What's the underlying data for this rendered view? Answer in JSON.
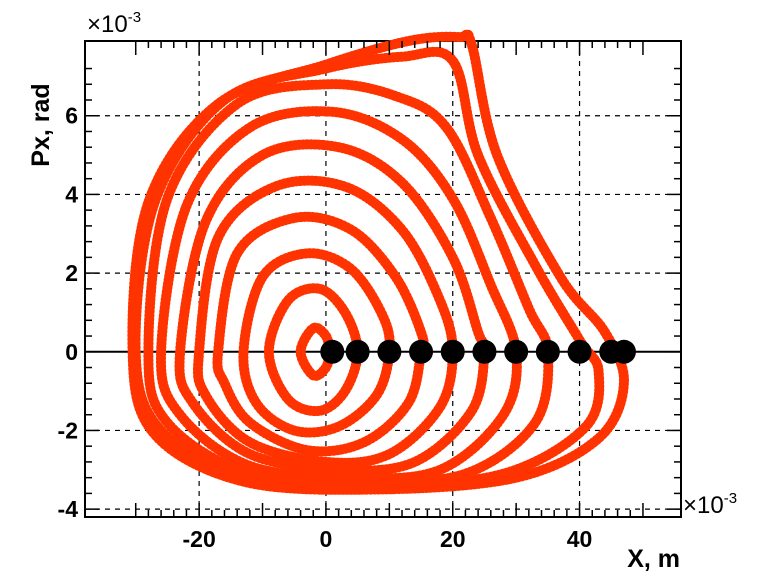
{
  "chart_data": {
    "type": "scatter",
    "title": "",
    "xlabel": "X, m",
    "ylabel": "Px, rad",
    "x_multiplier_label": "×10",
    "x_multiplier_exp": "-3",
    "y_multiplier_label": "×10",
    "y_multiplier_exp": "-3",
    "xlim": [
      -38,
      56
    ],
    "ylim": [
      -4.2,
      7.9
    ],
    "grid": true,
    "grid_style": "dashed",
    "xticks": [
      -20,
      0,
      20,
      40
    ],
    "yticks": [
      -4,
      -2,
      0,
      2,
      4,
      6
    ],
    "xtick_labels": [
      "-20",
      "0",
      "20",
      "40"
    ],
    "ytick_labels": [
      "-4",
      "-2",
      "0",
      "2",
      "4",
      "6"
    ],
    "series": [
      {
        "kind": "phase-space orbits",
        "color": "#ff3300",
        "orbits": [
          [
            [
              -4,
              0
            ],
            [
              -2,
              0.6
            ],
            [
              0,
              0.4
            ],
            [
              0.5,
              0
            ],
            [
              0,
              -0.4
            ],
            [
              -2,
              -0.6
            ]
          ],
          [
            [
              -9,
              0
            ],
            [
              -6,
              1.3
            ],
            [
              -1,
              1.6
            ],
            [
              3,
              1.0
            ],
            [
              5,
              0
            ],
            [
              3,
              -1.0
            ],
            [
              -1,
              -1.5
            ],
            [
              -6,
              -1.2
            ]
          ],
          [
            [
              -13,
              0
            ],
            [
              -10,
              1.9
            ],
            [
              -3,
              2.5
            ],
            [
              4,
              2.1
            ],
            [
              9,
              0.9
            ],
            [
              10,
              0
            ],
            [
              8,
              -1.1
            ],
            [
              2,
              -1.9
            ],
            [
              -5,
              -2.0
            ],
            [
              -11,
              -1.3
            ]
          ],
          [
            [
              -17,
              0
            ],
            [
              -14,
              2.5
            ],
            [
              -5,
              3.4
            ],
            [
              4,
              3.1
            ],
            [
              11,
              1.9
            ],
            [
              15,
              0.5
            ],
            [
              15,
              0
            ],
            [
              13,
              -1.3
            ],
            [
              6,
              -2.3
            ],
            [
              -3,
              -2.5
            ],
            [
              -12,
              -1.8
            ],
            [
              -16,
              -0.8
            ]
          ],
          [
            [
              -20,
              0
            ],
            [
              -17,
              2.9
            ],
            [
              -8,
              4.2
            ],
            [
              3,
              4.2
            ],
            [
              12,
              3.1
            ],
            [
              18,
              1.3
            ],
            [
              20,
              0
            ],
            [
              18,
              -1.4
            ],
            [
              10,
              -2.6
            ],
            [
              0,
              -2.8
            ],
            [
              -12,
              -2.3
            ],
            [
              -19,
              -1.1
            ]
          ],
          [
            [
              -23,
              0
            ],
            [
              -19,
              3.3
            ],
            [
              -10,
              5.0
            ],
            [
              2,
              5.2
            ],
            [
              12,
              4.3
            ],
            [
              20,
              2.4
            ],
            [
              24,
              0.5
            ],
            [
              25,
              0
            ],
            [
              23,
              -1.5
            ],
            [
              14,
              -2.8
            ],
            [
              2,
              -3.0
            ],
            [
              -12,
              -2.6
            ],
            [
              -21,
              -1.3
            ]
          ],
          [
            [
              -26,
              0
            ],
            [
              -22,
              3.7
            ],
            [
              -12,
              5.7
            ],
            [
              1,
              6.1
            ],
            [
              12,
              5.4
            ],
            [
              20,
              3.9
            ],
            [
              26,
              1.7
            ],
            [
              30,
              0
            ],
            [
              28,
              -1.6
            ],
            [
              18,
              -3.0
            ],
            [
              4,
              -3.2
            ],
            [
              -12,
              -2.9
            ],
            [
              -23,
              -1.6
            ]
          ],
          [
            [
              -28,
              0
            ],
            [
              -25,
              3.9
            ],
            [
              -14,
              6.3
            ],
            [
              0,
              6.8
            ],
            [
              11,
              6.5
            ],
            [
              19,
              5.7
            ],
            [
              26,
              3.4
            ],
            [
              32,
              1.1
            ],
            [
              35,
              0
            ],
            [
              33,
              -1.8
            ],
            [
              22,
              -3.1
            ],
            [
              6,
              -3.3
            ],
            [
              -12,
              -3.1
            ],
            [
              -25,
              -1.8
            ]
          ],
          [
            [
              -30,
              0
            ],
            [
              -27,
              3.8
            ],
            [
              -16,
              6.4
            ],
            [
              0,
              7.2
            ],
            [
              12,
              7.5
            ],
            [
              20,
              7.4
            ],
            [
              24,
              5.0
            ],
            [
              33,
              2.2
            ],
            [
              40,
              0.3
            ],
            [
              43,
              -0.5
            ],
            [
              41,
              -1.9
            ],
            [
              28,
              -3.1
            ],
            [
              8,
              -3.4
            ],
            [
              -12,
              -3.2
            ],
            [
              -26,
              -2.0
            ]
          ],
          [
            [
              -30.5,
              0
            ],
            [
              -28,
              3.8
            ],
            [
              -17,
              6.3
            ],
            [
              0,
              7.3
            ],
            [
              13,
              7.9
            ],
            [
              21,
              8.0
            ],
            [
              23,
              7.8
            ],
            [
              27,
              5.0
            ],
            [
              37,
              1.9
            ],
            [
              44,
              0.5
            ],
            [
              47,
              -0.8
            ],
            [
              43,
              -2.2
            ],
            [
              30,
              -3.2
            ],
            [
              8,
              -3.5
            ],
            [
              -13,
              -3.3
            ],
            [
              -27,
              -2.1
            ]
          ]
        ]
      },
      {
        "kind": "starting points",
        "color": "#000000",
        "x": [
          1,
          5,
          10,
          15,
          20,
          25,
          30,
          35,
          40,
          45,
          47
        ],
        "y": [
          0,
          0,
          0,
          0,
          0,
          0,
          0,
          0,
          0,
          0,
          0
        ]
      }
    ]
  }
}
